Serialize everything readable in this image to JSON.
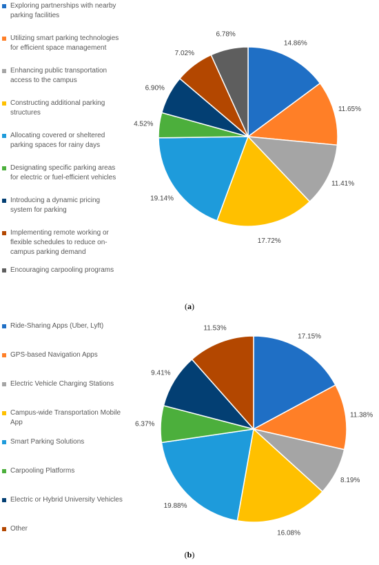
{
  "chart_data": [
    {
      "type": "pie",
      "panel_label": "a",
      "categories": [
        "Exploring partnerships with nearby parking facilities",
        "Utilizing smart parking technologies for efficient space management",
        "Enhancing public transportation access to the campus",
        "Constructing additional parking structures",
        "Allocating covered or sheltered parking spaces for rainy days",
        "Designating specific parking areas for electric or fuel-efficient vehicles",
        "Introducing a dynamic pricing system for parking",
        "Implementing remote working or flexible schedules to reduce on-campus parking demand",
        "Encouraging carpooling programs"
      ],
      "legend_lines": [
        [
          "Exploring partnerships with nearby",
          "parking facilities"
        ],
        [
          "Utilizing smart parking technologies",
          "for efficient space management"
        ],
        [
          "Enhancing public transportation",
          "access to the campus"
        ],
        [
          "Constructing additional parking",
          "structures"
        ],
        [
          "Allocating covered or sheltered",
          "parking spaces for rainy days"
        ],
        [
          "Designating specific parking areas",
          "for electric or fuel-efficient vehicles"
        ],
        [
          "Introducing a dynamic pricing",
          "system for parking"
        ],
        [
          "Implementing remote working or",
          "flexible schedules to reduce on-",
          "campus parking demand"
        ],
        [
          "Encouraging carpooling programs"
        ]
      ],
      "values": [
        14.86,
        11.65,
        11.41,
        17.72,
        19.14,
        4.52,
        6.9,
        7.02,
        6.78
      ],
      "labels": [
        "14.86%",
        "11.65%",
        "11.41%",
        "17.72%",
        "19.14%",
        "4.52%",
        "6.90%",
        "7.02%",
        "6.78%"
      ],
      "colors": [
        "#1F6FC5",
        "#FF7F27",
        "#A5A5A5",
        "#FFC000",
        "#1E9BDB",
        "#4CAF3C",
        "#033F73",
        "#B34700",
        "#5E5E5E"
      ],
      "legend_position": "left"
    },
    {
      "type": "pie",
      "panel_label": "b",
      "categories": [
        "Ride-Sharing Apps (Uber, Lyft)",
        "GPS-based Navigation Apps",
        "Electric Vehicle Charging Stations",
        "Campus-wide Transportation Mobile App",
        "Smart Parking Solutions",
        "Carpooling Platforms",
        "Electric or Hybrid University Vehicles",
        "Other"
      ],
      "legend_lines": [
        [
          "Ride-Sharing Apps (Uber, Lyft)"
        ],
        [
          "GPS-based Navigation Apps"
        ],
        [
          "Electric Vehicle Charging Stations"
        ],
        [
          "Campus-wide Transportation Mobile",
          "App"
        ],
        [
          "Smart Parking Solutions"
        ],
        [
          "Carpooling Platforms"
        ],
        [
          "Electric or Hybrid University Vehicles"
        ],
        [
          "Other"
        ]
      ],
      "values": [
        17.15,
        11.38,
        8.19,
        16.08,
        19.88,
        6.37,
        9.41,
        11.53
      ],
      "labels": [
        "17.15%",
        "11.38%",
        "8.19%",
        "16.08%",
        "19.88%",
        "6.37%",
        "9.41%",
        "11.53%"
      ],
      "colors": [
        "#1F6FC5",
        "#FF7F27",
        "#A5A5A5",
        "#FFC000",
        "#1E9BDB",
        "#4CAF3C",
        "#033F73",
        "#B34700"
      ],
      "legend_position": "left"
    }
  ],
  "captions": {
    "a": "a",
    "b": "b"
  }
}
